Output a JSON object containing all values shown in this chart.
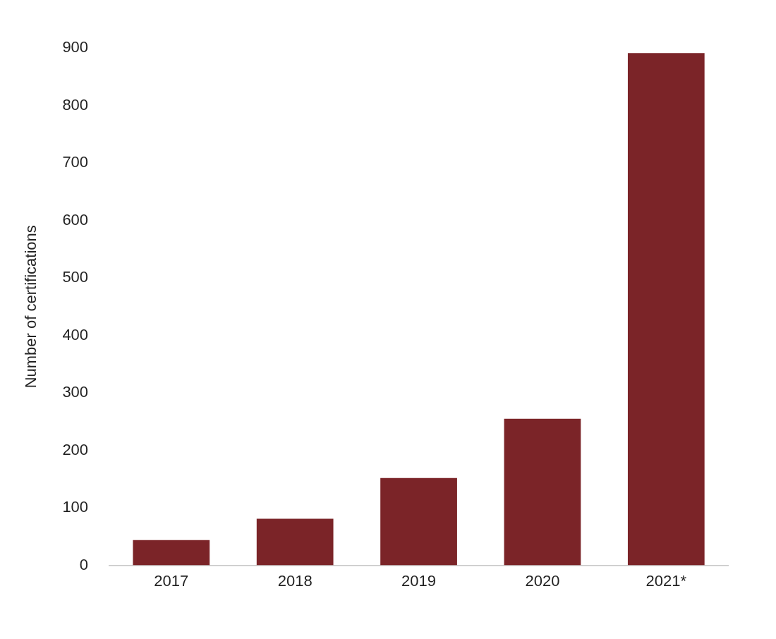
{
  "chart_data": {
    "type": "bar",
    "ylabel": "Number of certifications",
    "categories": [
      "2017",
      "2018",
      "2019",
      "2020",
      "2021*"
    ],
    "values": [
      44,
      81,
      152,
      255,
      891
    ],
    "color": "#7b2428",
    "ylim": [
      0,
      900
    ],
    "yticks": [
      0,
      100,
      200,
      300,
      400,
      500,
      600,
      700,
      800,
      900
    ],
    "grid": false,
    "legend": false
  }
}
